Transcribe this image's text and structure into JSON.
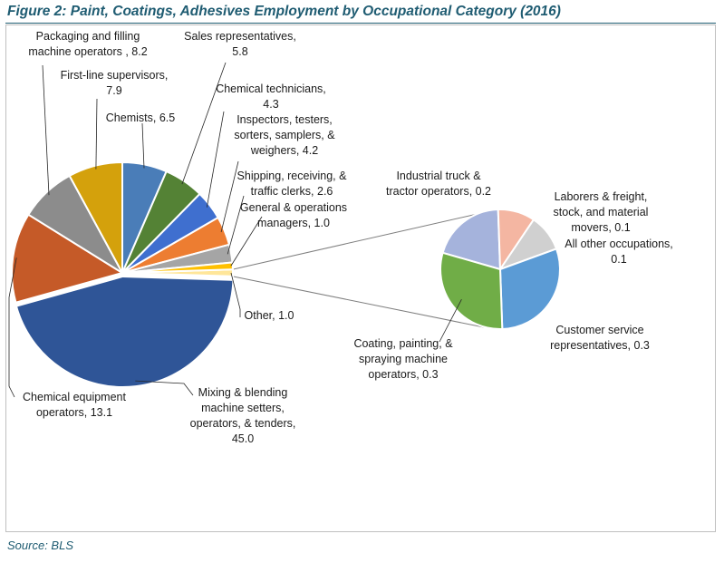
{
  "figure": {
    "title": "Figure 2: Paint, Coatings, Adhesives Employment by Occupational Category (2016)",
    "source": "Source: BLS"
  },
  "chart_data": {
    "type": "pie",
    "subtype": "pie-of-pie",
    "title": "",
    "main_slices": [
      {
        "label": "Mixing & blending machine setters, operators, & tenders",
        "value": 45.0,
        "color": "#2f5597"
      },
      {
        "label": "Chemical equipment operators",
        "value": 13.1,
        "color": "#c55a28"
      },
      {
        "label": "Packaging and filling machine operators",
        "value": 8.2,
        "color": "#8c8c8c"
      },
      {
        "label": "First-line supervisors",
        "value": 7.9,
        "color": "#d4a10c"
      },
      {
        "label": "Chemists",
        "value": 6.5,
        "color": "#4a7db8"
      },
      {
        "label": "Sales representatives",
        "value": 5.8,
        "color": "#548235"
      },
      {
        "label": "Chemical technicians",
        "value": 4.3,
        "color": "#3f6fcf"
      },
      {
        "label": "Inspectors, testers, sorters, samplers, & weighers",
        "value": 4.2,
        "color": "#ed7d31"
      },
      {
        "label": "Shipping, receiving, & traffic clerks",
        "value": 2.6,
        "color": "#a5a5a5"
      },
      {
        "label": "General & operations managers",
        "value": 1.0,
        "color": "#ffc000"
      },
      {
        "label": "Other",
        "value": 1.0,
        "color": "#ffe699"
      }
    ],
    "secondary_slices": [
      {
        "label": "Industrial truck & tractor operators",
        "value": 0.2,
        "color": "#a5b3dc"
      },
      {
        "label": "Laborers & freight, stock, and material movers",
        "value": 0.1,
        "color": "#f4b6a2"
      },
      {
        "label": "All other occupations",
        "value": 0.1,
        "color": "#d0d0d0"
      },
      {
        "label": "Customer service representatives",
        "value": 0.3,
        "color": "#5b9bd5"
      },
      {
        "label": "Coating, painting, & spraying machine operators",
        "value": 0.3,
        "color": "#70ad47"
      }
    ]
  },
  "labels": {
    "mixing": [
      "Mixing & blending",
      "machine setters,",
      "operators, & tenders,",
      "45.0"
    ],
    "chemical_equipment": [
      "Chemical equipment",
      "operators, 13.1"
    ],
    "packaging": [
      "Packaging and filling",
      "machine operators , 8.2"
    ],
    "first_line": [
      "First-line supervisors,",
      "7.9"
    ],
    "chemists": [
      "Chemists, 6.5"
    ],
    "sales": [
      "Sales representatives,",
      "5.8"
    ],
    "chemical_tech": [
      "Chemical technicians,",
      "4.3"
    ],
    "inspectors": [
      "Inspectors, testers,",
      "sorters, samplers, &",
      "weighers, 4.2"
    ],
    "shipping": [
      "Shipping, receiving, &",
      "traffic clerks, 2.6"
    ],
    "general": [
      "General & operations",
      "managers, 1.0"
    ],
    "other": [
      "Other, 1.0"
    ],
    "industrial": [
      "Industrial truck &",
      "tractor operators, 0.2"
    ],
    "laborers": [
      "Laborers & freight,",
      "stock, and material",
      "movers, 0.1"
    ],
    "all_other": [
      "All other occupations,",
      "0.1"
    ],
    "customer": [
      "Customer service",
      "representatives, 0.3"
    ],
    "coating": [
      "Coating, painting, &",
      "spraying machine",
      "operators, 0.3"
    ]
  }
}
